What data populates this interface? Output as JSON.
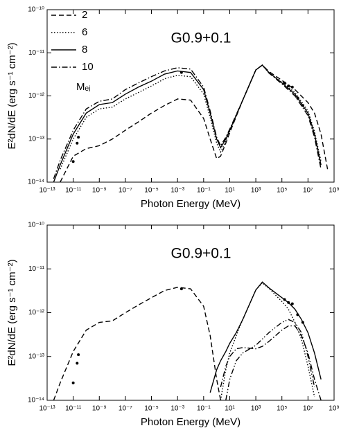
{
  "chart_data": [
    {
      "type": "line",
      "title": "G0.9+0.1",
      "x_label": "Photon Energy (MeV)",
      "y_label": "E²dN/dE (erg s⁻¹ cm⁻²)",
      "log_x": true,
      "log_y": true,
      "legend": "upper left",
      "legend_title": "Mₑⱼ",
      "xlim": [
        1e-13,
        1000000000.0
      ],
      "xticks": [
        {
          "value": 1e-13,
          "label": "10⁻¹³"
        },
        {
          "value": 1e-11,
          "label": "10⁻¹¹"
        },
        {
          "value": 1e-09,
          "label": "10⁻⁹"
        },
        {
          "value": 1e-07,
          "label": "10⁻⁷"
        },
        {
          "value": 1e-05,
          "label": "10⁻⁵"
        },
        {
          "value": 0.001,
          "label": "10⁻³"
        },
        {
          "value": 0.1,
          "label": "10⁻¹"
        },
        {
          "value": 10,
          "label": "10¹"
        },
        {
          "value": 1000,
          "label": "10³"
        },
        {
          "value": 100000,
          "label": "10⁵"
        },
        {
          "value": 10000000.0,
          "label": "10⁷"
        },
        {
          "value": 1000000000.0,
          "label": "10⁹"
        }
      ],
      "ylim": [
        1e-14,
        1e-10
      ],
      "yticks": [
        {
          "value": 1e-14,
          "label": "10⁻¹⁴"
        },
        {
          "value": 1e-13,
          "label": "10⁻¹³"
        },
        {
          "value": 1e-12,
          "label": "10⁻¹²"
        },
        {
          "value": 1e-11,
          "label": "10⁻¹¹"
        },
        {
          "value": 1e-10,
          "label": "10⁻¹⁰"
        }
      ],
      "x": [
        3.16e-13,
        1e-12,
        1e-11,
        1e-10,
        1e-09,
        1e-08,
        1e-07,
        1e-06,
        1e-05,
        0.0001,
        0.001,
        0.01,
        0.1,
        0.316,
        1,
        2,
        5,
        10,
        100,
        1000,
        3162,
        10000,
        100000,
        1000000.0,
        10000000.0,
        31600000.0,
        100000000.0,
        316000000.0
      ],
      "series": [
        {
          "name": "2",
          "style": "dashed",
          "color": "#000000",
          "values": [
            null,
            1e-14,
            4e-14,
            6e-14,
            7e-14,
            1e-13,
            1.6e-13,
            2.5e-13,
            4e-13,
            6e-13,
            8.5e-13,
            8e-13,
            3e-13,
            1e-13,
            3.5e-14,
            4e-14,
            8e-14,
            1.4e-13,
            8e-13,
            4e-12,
            5.2e-12,
            3.7e-12,
            2.3e-12,
            1.4e-12,
            7e-13,
            4e-13,
            1.3e-13,
            2e-14
          ]
        },
        {
          "name": "6",
          "style": "dotted",
          "color": "#000000",
          "values": [
            null,
            2e-14,
            1e-13,
            3.2e-13,
            5e-13,
            5.5e-13,
            8.5e-13,
            1.2e-12,
            1.7e-12,
            2.5e-12,
            3e-12,
            2.8e-12,
            1.1e-12,
            3.2e-13,
            8e-14,
            5e-14,
            9e-14,
            1.5e-13,
            8e-13,
            4e-12,
            5.2e-12,
            3.5e-12,
            2.1e-12,
            1.2e-12,
            4.5e-13,
            1.5e-13,
            3e-14,
            null
          ]
        },
        {
          "name": "8",
          "style": "solid",
          "color": "#000000",
          "values": [
            1e-14,
            2.5e-14,
            1.3e-13,
            4e-13,
            6.3e-13,
            7e-13,
            1.1e-12,
            1.6e-12,
            2.2e-12,
            3.2e-12,
            3.8e-12,
            3.5e-12,
            1.4e-12,
            4e-13,
            1e-13,
            6.3e-14,
            1e-13,
            1.6e-13,
            8e-13,
            4e-12,
            5.2e-12,
            3.5e-12,
            2e-12,
            1.1e-12,
            4e-13,
            1.3e-13,
            2.5e-14,
            null
          ]
        },
        {
          "name": "10",
          "style": "dashdot",
          "color": "#000000",
          "values": [
            1.2e-14,
            3.2e-14,
            1.6e-13,
            5e-13,
            7.5e-13,
            8.5e-13,
            1.4e-12,
            2e-12,
            2.8e-12,
            3.8e-12,
            4.5e-12,
            4.2e-12,
            1.6e-12,
            4.5e-13,
            1.1e-13,
            7e-14,
            1.1e-13,
            1.7e-13,
            8e-13,
            4e-12,
            5.2e-12,
            3.4e-12,
            1.9e-12,
            1e-12,
            3.5e-13,
            1.1e-13,
            2e-14,
            null
          ]
        }
      ],
      "points": {
        "color": "#000000",
        "x": [
          1e-11,
          2e-11,
          2.5e-11,
          0.002,
          160000,
          320000,
          630000,
          1600000.0,
          4000000.0
        ],
        "values": [
          3e-14,
          8e-14,
          1.1e-13,
          3.5e-12,
          2e-12,
          1.7e-12,
          1.6e-12,
          9e-13,
          6e-13
        ]
      }
    },
    {
      "type": "line",
      "title": "G0.9+0.1",
      "x_label": "Photon Energy (MeV)",
      "y_label": "E²dN/dE (erg s⁻¹ cm⁻²)",
      "log_x": true,
      "log_y": true,
      "xlim": [
        1e-13,
        1000000000.0
      ],
      "xticks": [
        {
          "value": 1e-13,
          "label": "10⁻¹³"
        },
        {
          "value": 1e-11,
          "label": "10⁻¹¹"
        },
        {
          "value": 1e-09,
          "label": "10⁻⁹"
        },
        {
          "value": 1e-07,
          "label": "10⁻⁷"
        },
        {
          "value": 1e-05,
          "label": "10⁻⁵"
        },
        {
          "value": 0.001,
          "label": "10⁻³"
        },
        {
          "value": 0.1,
          "label": "10⁻¹"
        },
        {
          "value": 10,
          "label": "10¹"
        },
        {
          "value": 1000,
          "label": "10³"
        },
        {
          "value": 100000,
          "label": "10⁵"
        },
        {
          "value": 10000000.0,
          "label": "10⁷"
        },
        {
          "value": 1000000000.0,
          "label": "10⁹"
        }
      ],
      "ylim": [
        1e-14,
        1e-10
      ],
      "yticks": [
        {
          "value": 1e-14,
          "label": "10⁻¹⁴"
        },
        {
          "value": 1e-13,
          "label": "10⁻¹³"
        },
        {
          "value": 1e-12,
          "label": "10⁻¹²"
        },
        {
          "value": 1e-11,
          "label": "10⁻¹¹"
        },
        {
          "value": 1e-10,
          "label": "10⁻¹⁰"
        }
      ],
      "x": [
        3.16e-13,
        1e-12,
        1e-11,
        1e-10,
        1e-09,
        1e-08,
        1e-07,
        1e-06,
        1e-05,
        0.0001,
        0.001,
        0.01,
        0.1,
        0.316,
        1,
        2,
        5,
        10,
        31.6,
        100,
        1000,
        3162,
        10000,
        100000,
        316000,
        1000000.0,
        3160000.0,
        10000000.0,
        31600000.0,
        100000000.0,
        316000000.0
      ],
      "series": [
        {
          "style": "dashed",
          "color": "#000000",
          "values": [
            1e-14,
            2.5e-14,
            1.3e-13,
            4e-13,
            6e-13,
            6.5e-13,
            1e-12,
            1.5e-12,
            2.2e-12,
            3.2e-12,
            3.8e-12,
            3.5e-12,
            1.4e-12,
            3e-13,
            3e-14,
            1e-14,
            null,
            null,
            null,
            null,
            null,
            null,
            null,
            null,
            null,
            null,
            null,
            null,
            null,
            null,
            null
          ]
        },
        {
          "style": "solid",
          "color": "#000000",
          "values": [
            null,
            null,
            null,
            null,
            null,
            null,
            null,
            null,
            null,
            null,
            null,
            null,
            null,
            1.5e-14,
            5e-14,
            8e-14,
            1.3e-13,
            2e-13,
            3.5e-13,
            7e-13,
            3.3e-12,
            5e-12,
            3.7e-12,
            2.2e-12,
            1.7e-12,
            1.2e-12,
            7e-13,
            3.5e-13,
            1.2e-13,
            3e-14,
            null
          ]
        },
        {
          "style": "dotted",
          "color": "#000000",
          "values": [
            null,
            null,
            null,
            null,
            null,
            null,
            null,
            null,
            null,
            null,
            null,
            null,
            null,
            null,
            null,
            1e-14,
            5e-14,
            1.2e-13,
            3e-13,
            7e-13,
            3.3e-12,
            4.8e-12,
            3.6e-12,
            1.8e-12,
            1.2e-12,
            6e-13,
            2.5e-13,
            6e-14,
            1.2e-14,
            null,
            null
          ]
        },
        {
          "style": "dashdot",
          "color": "#000000",
          "values": [
            null,
            null,
            null,
            null,
            null,
            null,
            null,
            null,
            null,
            null,
            null,
            null,
            null,
            null,
            null,
            2e-14,
            6e-14,
            1e-13,
            1.5e-13,
            1.6e-13,
            1.5e-13,
            1.7e-13,
            2.2e-13,
            4e-13,
            5e-13,
            5e-13,
            3e-13,
            1.2e-13,
            3e-14,
            1e-14,
            null
          ]
        },
        {
          "style": "dashdotdot",
          "color": "#000000",
          "values": [
            null,
            null,
            null,
            null,
            null,
            null,
            null,
            null,
            null,
            null,
            null,
            null,
            null,
            null,
            null,
            null,
            1e-14,
            3e-14,
            8e-14,
            1.2e-13,
            1.8e-13,
            2.5e-13,
            3.5e-13,
            6e-13,
            7e-13,
            6e-13,
            3.5e-13,
            1e-13,
            2e-14,
            null,
            null
          ]
        }
      ],
      "points": {
        "color": "#000000",
        "x": [
          1e-11,
          2e-11,
          2.5e-11,
          0.002,
          160000,
          320000,
          630000,
          1600000.0,
          4000000.0
        ],
        "values": [
          2.5e-14,
          7e-14,
          1.1e-13,
          3.5e-12,
          2e-12,
          1.7e-12,
          1.6e-12,
          9e-13,
          6e-13
        ]
      }
    }
  ]
}
